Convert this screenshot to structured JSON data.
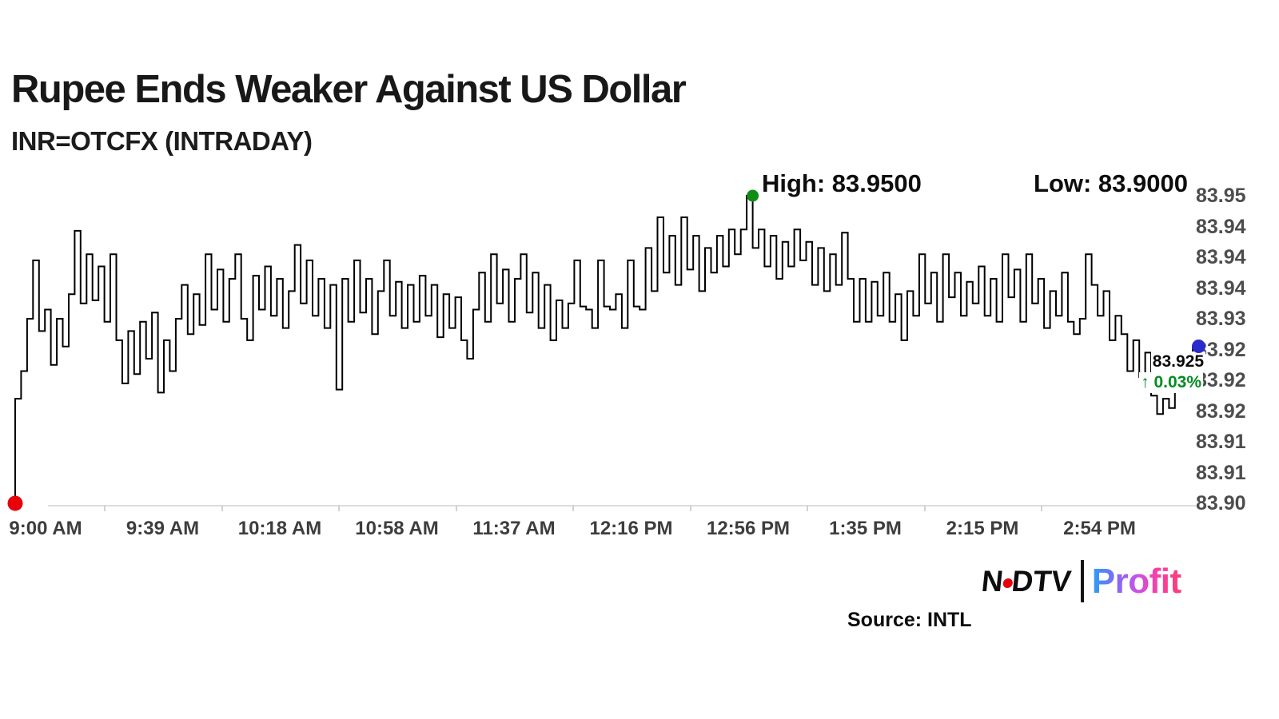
{
  "title": "Rupee Ends Weaker Against US Dollar",
  "subtitle": "INR=OTCFX (INTRADAY)",
  "annotations": {
    "high_label": "High: 83.9500",
    "low_label": "Low: 83.9000",
    "last_price": "83.925",
    "change_arrow": "↑",
    "change_pct": "0.03%"
  },
  "footer": {
    "source": "Source: INTL",
    "logo": {
      "ndtv_left": "N",
      "ndtv_right": "DTV",
      "profit": "Profit"
    }
  },
  "colors": {
    "line": "#000000",
    "open_dot": "#e8000b",
    "high_dot": "#0e8c17",
    "last_dot": "#2b2bcd",
    "gain_green": "#008d1f",
    "ndtv_red": "#e8000b",
    "axis_text": "#4d4d4d",
    "axis_line": "#dcdcdc",
    "profit_gradient": [
      "#2aa0f2",
      "#7d6cf5",
      "#c653e8",
      "#fb3fa0",
      "#f93d77"
    ]
  },
  "chart_data": {
    "type": "line",
    "symbol": "INR=OTCFX",
    "session": "INTRADAY",
    "title": "Rupee Ends Weaker Against US Dollar",
    "ylim": [
      83.9,
      83.95
    ],
    "open": 83.9,
    "high": 83.95,
    "low": 83.9,
    "last": 83.925,
    "change_pct": 0.03,
    "grid": false,
    "legend": false,
    "x_tick_labels": [
      "9:00 AM",
      "9:39 AM",
      "10:18 AM",
      "10:58 AM",
      "11:37 AM",
      "12:16 PM",
      "12:56 PM",
      "1:35 PM",
      "2:15 PM",
      "2:54 PM"
    ],
    "y_tick_labels": [
      "83.95",
      "83.94",
      "83.94",
      "83.94",
      "83.93",
      "83.92",
      "83.92",
      "83.92",
      "83.91",
      "83.91",
      "83.90"
    ],
    "series": [
      {
        "name": "INR=OTCFX intraday price",
        "values": [
          83.9,
          83.917,
          83.9215,
          83.93,
          83.9395,
          83.928,
          83.9315,
          83.9225,
          83.93,
          83.9255,
          83.934,
          83.9443,
          83.9325,
          83.9405,
          83.933,
          83.9385,
          83.9295,
          83.9405,
          83.9265,
          83.9195,
          83.928,
          83.921,
          83.9295,
          83.9235,
          83.931,
          83.918,
          83.9265,
          83.9215,
          83.93,
          83.9355,
          83.9275,
          83.934,
          83.929,
          83.9405,
          83.9315,
          83.938,
          83.9295,
          83.9365,
          83.9405,
          83.93,
          83.9265,
          83.937,
          83.9315,
          83.9385,
          83.9305,
          83.9365,
          83.9285,
          83.9345,
          83.942,
          83.9325,
          83.9395,
          83.9305,
          83.9365,
          83.9285,
          83.9355,
          83.9185,
          83.9365,
          83.9295,
          83.9395,
          83.931,
          83.9365,
          83.9275,
          83.9345,
          83.9395,
          83.9305,
          83.936,
          83.9285,
          83.9355,
          83.9295,
          83.937,
          83.9305,
          83.9355,
          83.927,
          83.934,
          83.9285,
          83.9335,
          83.9265,
          83.9235,
          83.9315,
          83.9375,
          83.9295,
          83.9405,
          83.9325,
          83.938,
          83.9295,
          83.9365,
          83.9405,
          83.931,
          83.9375,
          83.9285,
          83.9355,
          83.9265,
          83.933,
          83.9285,
          83.9325,
          83.9395,
          83.932,
          83.9315,
          83.9285,
          83.9395,
          83.932,
          83.9315,
          83.934,
          83.9285,
          83.9395,
          83.932,
          83.9315,
          83.9415,
          83.9345,
          83.9465,
          83.9375,
          83.9435,
          83.9355,
          83.9465,
          83.938,
          83.9435,
          83.9345,
          83.9415,
          83.9375,
          83.9435,
          83.9385,
          83.9445,
          83.9405,
          83.9445,
          83.95,
          83.9415,
          83.9445,
          83.9385,
          83.9435,
          83.9365,
          83.9425,
          83.9385,
          83.9445,
          83.9395,
          83.9425,
          83.9355,
          83.9415,
          83.9345,
          83.9405,
          83.9355,
          83.944,
          83.9365,
          83.9295,
          83.9365,
          83.9295,
          83.936,
          83.9305,
          83.9375,
          83.9295,
          83.934,
          83.9265,
          83.9345,
          83.9305,
          83.9405,
          83.9325,
          83.9375,
          83.9295,
          83.9405,
          83.9335,
          83.9375,
          83.9305,
          83.936,
          83.9325,
          83.9385,
          83.9305,
          83.9365,
          83.9295,
          83.9405,
          83.9335,
          83.938,
          83.9295,
          83.9405,
          83.9325,
          83.9365,
          83.9285,
          83.9345,
          83.9305,
          83.9375,
          83.9295,
          83.9275,
          83.93,
          83.9405,
          83.9355,
          83.9305,
          83.9345,
          83.9265,
          83.9305,
          83.9275,
          83.9215,
          83.9265,
          83.9205,
          83.9245,
          83.9175,
          83.9145,
          83.917,
          83.9155,
          83.919,
          83.9225,
          83.924,
          83.9255
        ]
      }
    ]
  }
}
